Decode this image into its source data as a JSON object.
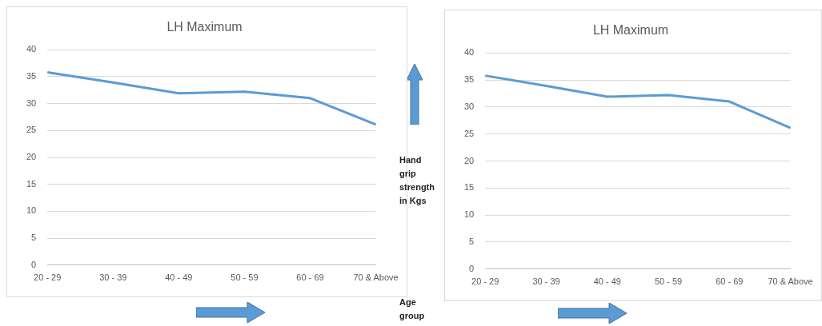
{
  "chart_data": [
    {
      "type": "line",
      "title": "LH Maximum",
      "categories": [
        "20 - 29",
        "30 - 39",
        "40 - 49",
        "50 - 59",
        "60 - 69",
        "70 & Above"
      ],
      "values": [
        35.8,
        33.9,
        31.9,
        32.2,
        31.0,
        26.1
      ],
      "color": "#5b9bd5",
      "ylim": [
        0,
        40
      ],
      "yticks": [
        0,
        5,
        10,
        15,
        20,
        25,
        30,
        35,
        40
      ],
      "grid": "y",
      "marker": "none",
      "annotations": [
        "Hand grip strength in Kgs",
        "Age group"
      ]
    },
    {
      "type": "line",
      "title": "LH Maximum",
      "categories": [
        "20 - 29",
        "30 - 39",
        "40 - 49",
        "50 - 59",
        "60 - 69",
        "70 & Above"
      ],
      "values": [
        35.8,
        33.9,
        31.9,
        32.2,
        31.0,
        26.1
      ],
      "color": "#5b9bd5",
      "ylim": [
        0,
        40
      ],
      "yticks": [
        0,
        5,
        10,
        15,
        20,
        25,
        30,
        35,
        40
      ],
      "grid": "y",
      "marker": "none"
    }
  ]
}
